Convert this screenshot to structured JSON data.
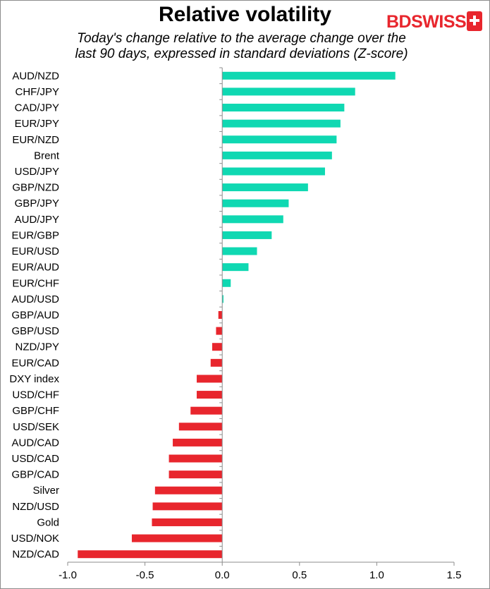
{
  "title": "Relative volatility",
  "subtitle_lines": [
    "Today's change relative to the average change over the",
    "last 90 days, expressed in standard deviations (Z-score)"
  ],
  "logo": {
    "text": "BDSWISS",
    "color": "#e8262d"
  },
  "colors": {
    "positive": "#0fd8b2",
    "negative": "#e8262d",
    "axis": "#8c8c8c"
  },
  "chart_data": {
    "type": "bar",
    "orientation": "horizontal",
    "title": "Relative volatility",
    "subtitle": "Today's change relative to the average change over the last 90 days, expressed in standard deviations (Z-score)",
    "categories": [
      "AUD/NZD",
      "CHF/JPY",
      "CAD/JPY",
      "EUR/JPY",
      "EUR/NZD",
      "Brent",
      "USD/JPY",
      "GBP/NZD",
      "GBP/JPY",
      "AUD/JPY",
      "EUR/GBP",
      "EUR/USD",
      "EUR/AUD",
      "EUR/CHF",
      "AUD/USD",
      "GBP/AUD",
      "GBP/USD",
      "NZD/JPY",
      "EUR/CAD",
      "DXY index",
      "USD/CHF",
      "GBP/CHF",
      "USD/SEK",
      "AUD/CAD",
      "USD/CAD",
      "GBP/CAD",
      "Silver",
      "NZD/USD",
      "Gold",
      "USD/NOK",
      "NZD/CAD"
    ],
    "values": [
      1.12,
      0.86,
      0.79,
      0.765,
      0.74,
      0.71,
      0.665,
      0.555,
      0.43,
      0.395,
      0.32,
      0.225,
      0.17,
      0.055,
      0.008,
      -0.025,
      -0.04,
      -0.065,
      -0.075,
      -0.165,
      -0.165,
      -0.205,
      -0.28,
      -0.32,
      -0.345,
      -0.345,
      -0.435,
      -0.45,
      -0.455,
      -0.585,
      -0.935
    ],
    "xlim": [
      -1.0,
      1.5
    ],
    "xticks": [
      "-1.0",
      "-0.5",
      "0.0",
      "0.5",
      "1.0",
      "1.5"
    ],
    "xlabel": "",
    "ylabel": "",
    "grid": false,
    "legend": "none"
  }
}
